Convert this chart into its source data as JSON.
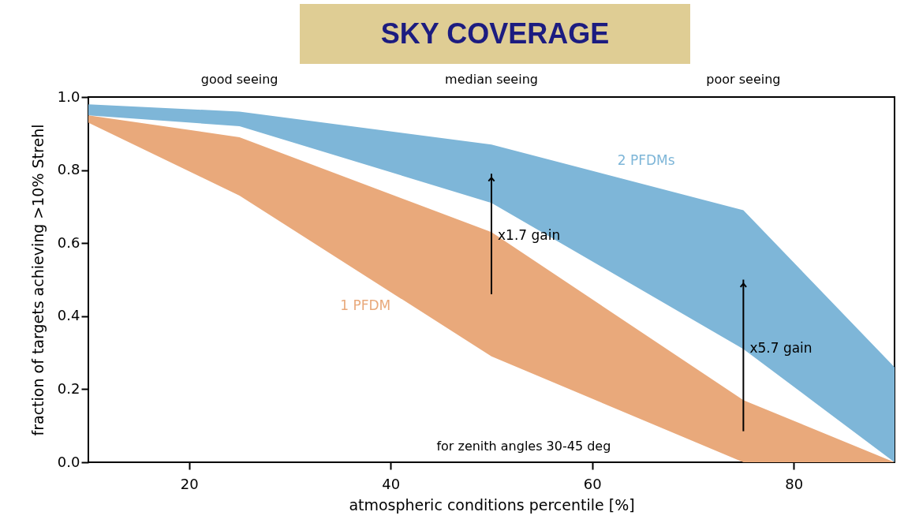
{
  "chart_data": {
    "type": "area",
    "title": "SKY COVERAGE",
    "xlabel": "atmospheric conditions percentile [%]",
    "ylabel": "fraction of targets achieving >10% Strehl",
    "x": [
      10,
      25,
      50,
      75,
      90
    ],
    "series": [
      {
        "name": "2 PFDMs",
        "color": "#7eb6d8",
        "values": [
          null,
          null,
          null,
          null,
          null
        ],
        "upper": [
          0.98,
          0.96,
          0.87,
          0.69,
          0.26
        ],
        "lower": [
          0.95,
          0.92,
          0.71,
          0.31,
          0.0
        ]
      },
      {
        "name": "1 PFDM",
        "color": "#e9a97b",
        "values": [
          null,
          null,
          null,
          null,
          null
        ],
        "upper": [
          0.95,
          0.89,
          0.63,
          0.17,
          0.0
        ],
        "lower": [
          0.93,
          0.73,
          0.29,
          0.0,
          0.0
        ]
      }
    ],
    "xlim": [
      10,
      90
    ],
    "xticks": [
      20,
      40,
      60,
      80
    ],
    "ylim": [
      0,
      1
    ],
    "yticks": [
      {
        "value": 0,
        "label": "0.0"
      },
      {
        "value": 0.2,
        "label": "0.2"
      },
      {
        "value": 0.4,
        "label": "0.4"
      },
      {
        "value": 0.6,
        "label": "0.6"
      },
      {
        "value": 0.8,
        "label": "0.8"
      },
      {
        "value": 1,
        "label": "1.0"
      }
    ],
    "annotations": [
      "good seeing",
      "median seeing",
      "poor seeing",
      {
        "text": "x1.7 gain",
        "x": 50,
        "y": 0.62
      },
      {
        "text": "x5.7 gain",
        "x": 75,
        "y": 0.31
      },
      "for zenith angles 30-45 deg"
    ],
    "grid": false
  }
}
